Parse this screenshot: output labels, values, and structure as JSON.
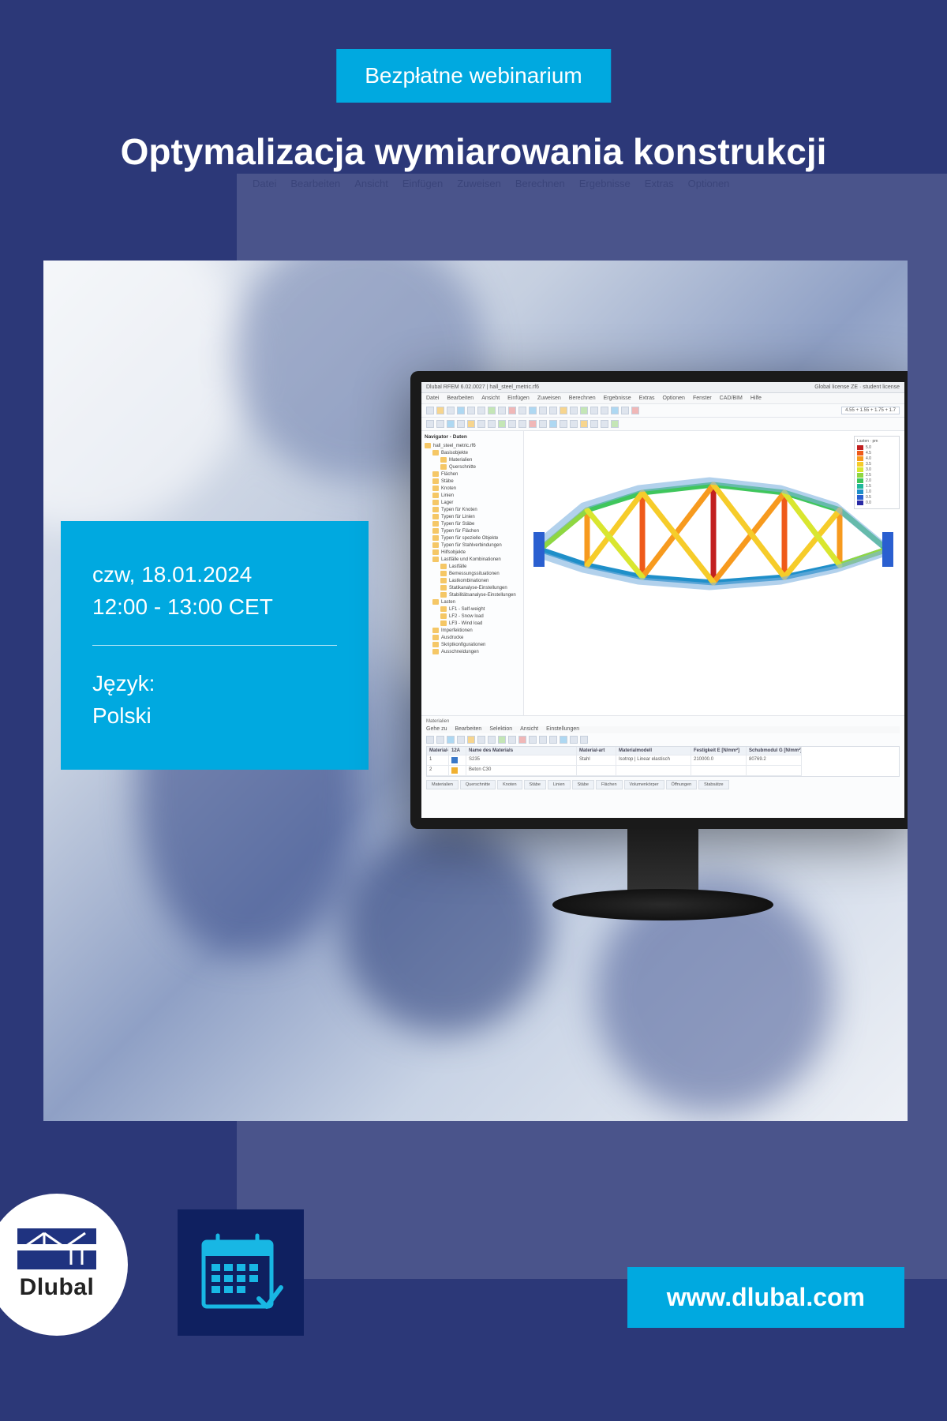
{
  "colors": {
    "page_bg": "#2c3878",
    "accent": "#00a9e0",
    "logo_blue": "#1f3380",
    "calendar_bg": "#0f2060",
    "white": "#ffffff"
  },
  "badge": {
    "label": "Bezpłatne webinarium"
  },
  "title": "Optymalizacja wymiarowania konstrukcji",
  "info": {
    "date_line": "czw, 18.01.2024",
    "time_line": "12:00 - 13:00 CET",
    "language_label": "Język:",
    "language_value": "Polski"
  },
  "bg_menu_items": [
    "Datei",
    "Bearbeiten",
    "Ansicht",
    "Einfügen",
    "Zuweisen",
    "Berechnen",
    "Ergebnisse",
    "Extras",
    "Optionen"
  ],
  "screenshot": {
    "window_title": "Dlubal RFEM 6.02.0027 | hall_steel_metric.rf6",
    "right_title": "Global license ZE · student license",
    "menu": [
      "Datei",
      "Bearbeiten",
      "Ansicht",
      "Einfügen",
      "Zuweisen",
      "Berechnen",
      "Ergebnisse",
      "Extras",
      "Optionen",
      "Fenster",
      "CAD/BIM",
      "Hilfe"
    ],
    "search_field": "4.55 + 1.55 + 1.75 + 1.7",
    "nav_title": "Navigator - Daten",
    "nav": [
      {
        "lv": 0,
        "label": "hall_steel_metric.rf6"
      },
      {
        "lv": 1,
        "label": "Basisobjekte"
      },
      {
        "lv": 2,
        "label": "Materialien"
      },
      {
        "lv": 2,
        "label": "Querschnitte"
      },
      {
        "lv": 1,
        "label": "Flächen"
      },
      {
        "lv": 1,
        "label": "Stäbe"
      },
      {
        "lv": 1,
        "label": "Knoten"
      },
      {
        "lv": 1,
        "label": "Linien"
      },
      {
        "lv": 1,
        "label": "Lager"
      },
      {
        "lv": 1,
        "label": "Typen für Knoten"
      },
      {
        "lv": 1,
        "label": "Typen für Linien"
      },
      {
        "lv": 1,
        "label": "Typen für Stäbe"
      },
      {
        "lv": 1,
        "label": "Typen für Flächen"
      },
      {
        "lv": 1,
        "label": "Typen für spezielle Objekte"
      },
      {
        "lv": 1,
        "label": "Typen für Stahlverbindungen"
      },
      {
        "lv": 1,
        "label": "Hilfsobjekte"
      },
      {
        "lv": 1,
        "label": "Lastfälle und Kombinationen"
      },
      {
        "lv": 2,
        "label": "Lastfälle"
      },
      {
        "lv": 2,
        "label": "Bemessungssituationen"
      },
      {
        "lv": 2,
        "label": "Lastkombinationen"
      },
      {
        "lv": 2,
        "label": "Statikanalyse-Einstellungen"
      },
      {
        "lv": 2,
        "label": "Stabilitätsanalyse-Einstellungen"
      },
      {
        "lv": 1,
        "label": "Lasten"
      },
      {
        "lv": 2,
        "label": "LF1 - Self-weight"
      },
      {
        "lv": 2,
        "label": "LF2 - Snow load"
      },
      {
        "lv": 2,
        "label": "LF3 - Wind load"
      },
      {
        "lv": 1,
        "label": "Imperfektionen"
      },
      {
        "lv": 1,
        "label": "Ausdrucke"
      },
      {
        "lv": 1,
        "label": "Skriptkonfigurationen"
      },
      {
        "lv": 1,
        "label": "Ausschneidungen"
      }
    ],
    "legend": {
      "title": "Lasten · pm",
      "rows": [
        {
          "c": "#c22020",
          "v": "5.0"
        },
        {
          "c": "#ef5a1a",
          "v": "4.5"
        },
        {
          "c": "#f79a1e",
          "v": "4.0"
        },
        {
          "c": "#f6cc2a",
          "v": "3.5"
        },
        {
          "c": "#d9e62f",
          "v": "3.0"
        },
        {
          "c": "#8fd741",
          "v": "2.5"
        },
        {
          "c": "#3fc65c",
          "v": "2.0"
        },
        {
          "c": "#1fb79a",
          "v": "1.5"
        },
        {
          "c": "#1f8fc9",
          "v": "1.0"
        },
        {
          "c": "#2a5fd0",
          "v": "0.5"
        },
        {
          "c": "#2a2aa5",
          "v": "0.0"
        }
      ]
    },
    "bottom_panel": {
      "title": "Materialien",
      "sub_menu": [
        "Gehe zu",
        "Bearbeiten",
        "Selektion",
        "Ansicht",
        "Einstellungen"
      ],
      "table": {
        "headers": [
          "Material-Nr.",
          "12A",
          "Name des Materials",
          "Material-art",
          "Materialmodell",
          "Festigkeit E [N/mm²]",
          "Schubmodul G [N/mm²]"
        ],
        "rows": [
          {
            "id": "1",
            "sw": "#3a78c8",
            "name": "S235",
            "type": "Stahl",
            "model": "Isotrop | Linear elastisch",
            "E": "210000.0",
            "G": "80769.2"
          },
          {
            "id": "2",
            "sw": "#f0b030",
            "name": "Beton C30",
            "type": "",
            "model": "",
            "E": "",
            "G": ""
          }
        ]
      },
      "tabs": [
        "Materialien",
        "Querschnitte",
        "Knoten",
        "Stäbe",
        "Linien",
        "Stäbe",
        "Flächen",
        "Volumenkörper",
        "Öffnungen",
        "Stabsätze"
      ],
      "status": [
        "FANG",
        "RASTER",
        "KS-GITTER",
        "O-FANG",
        "",
        "KS-Global XYZ",
        "",
        "Ebene XY"
      ]
    }
  },
  "footer": {
    "brand": "Dlubal",
    "url": "www.dlubal.com"
  }
}
